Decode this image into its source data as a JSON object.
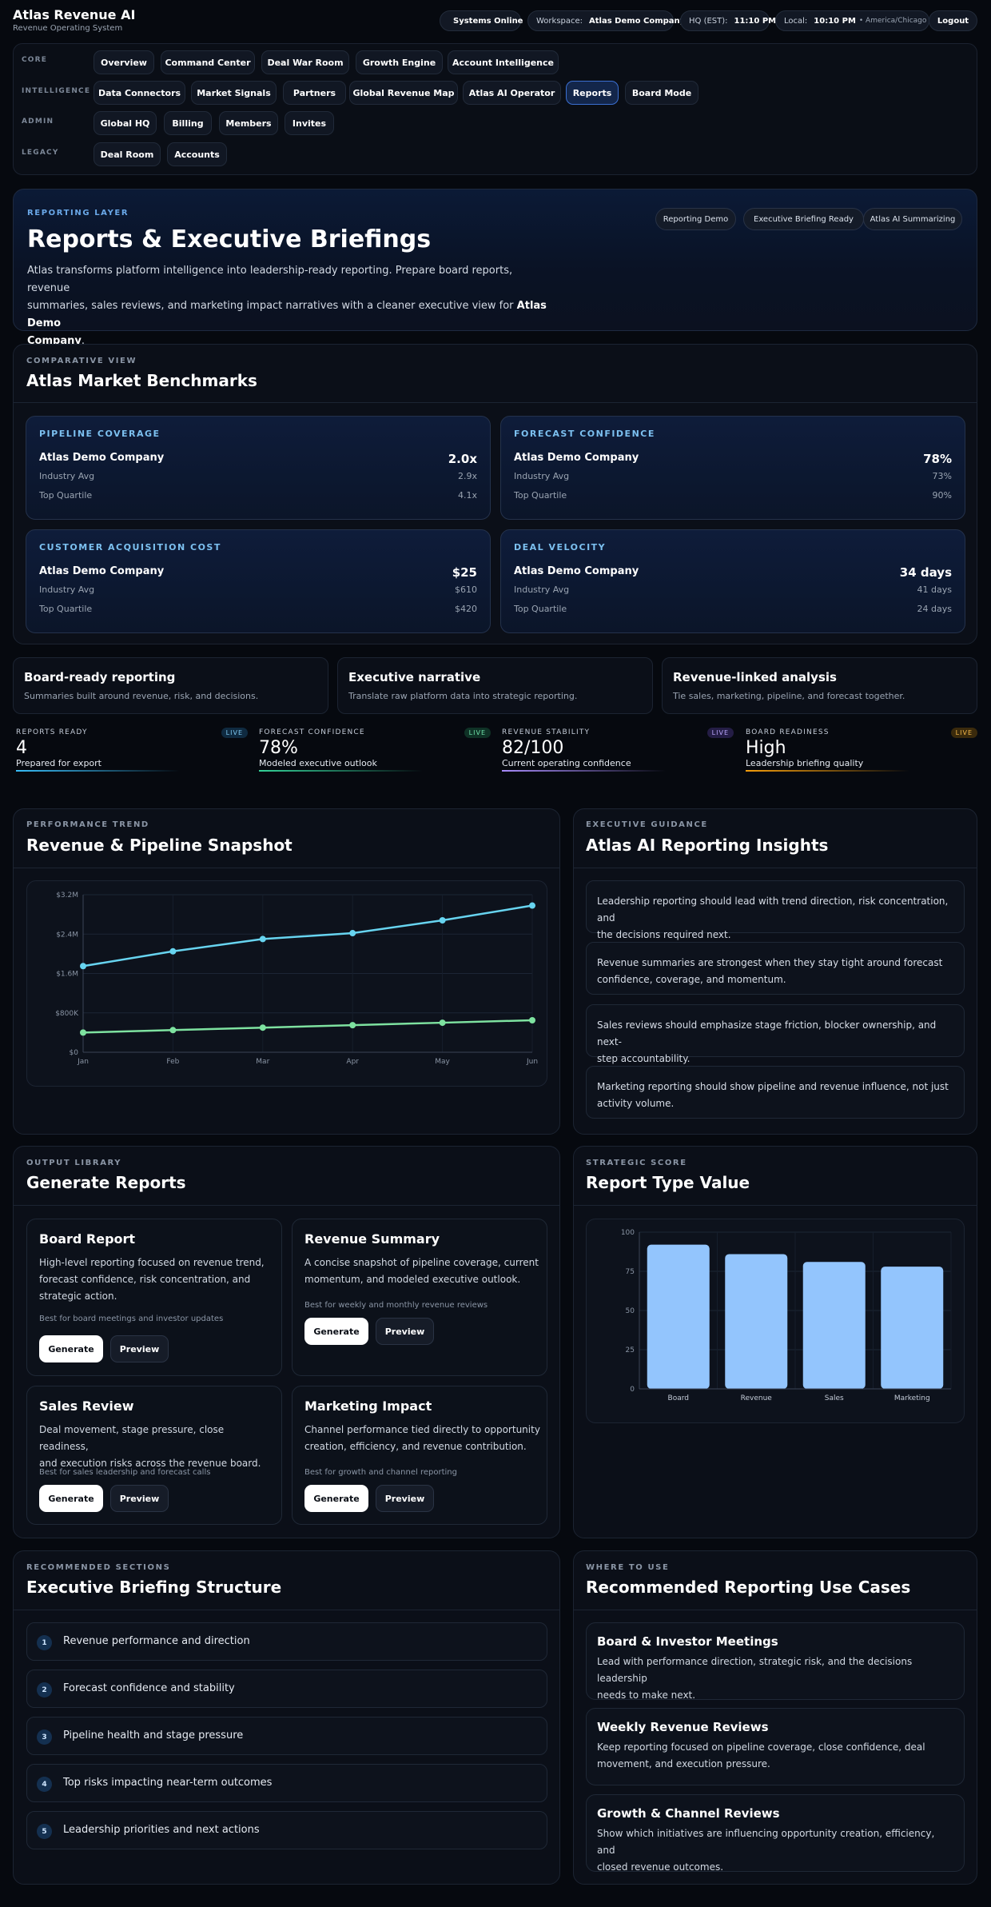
{
  "app": {
    "title": "Atlas Revenue AI",
    "subtitle": "Revenue Operating System"
  },
  "header": {
    "status": "Systems Online",
    "workspace_label": "Workspace:",
    "workspace_value": "Atlas Demo Company",
    "hq_label": "HQ (EST):",
    "hq_value": "11:10 PM",
    "local_label": "Local:",
    "local_value": "10:10 PM",
    "local_tz": "• America/Chicago",
    "logout": "Logout"
  },
  "nav": {
    "core_label": "CORE",
    "core": [
      "Overview",
      "Command Center",
      "Deal War Room",
      "Growth Engine",
      "Account Intelligence"
    ],
    "intel_label": "INTELLIGENCE",
    "intel": [
      "Data Connectors",
      "Market Signals",
      "Partners",
      "Global Revenue Map",
      "Atlas AI Operator",
      "Reports",
      "Board Mode"
    ],
    "admin_label": "ADMIN",
    "admin": [
      "Global HQ",
      "Billing",
      "Members",
      "Invites"
    ],
    "legacy_label": "LEGACY",
    "legacy": [
      "Deal Room",
      "Accounts"
    ],
    "active": "Reports"
  },
  "hero": {
    "eyebrow": "REPORTING LAYER",
    "title": "Reports & Executive Briefings",
    "desc_line1": "Atlas transforms platform intelligence into leadership-ready reporting. Prepare board reports, revenue",
    "desc_line2": "summaries, sales reviews, and marketing impact narratives with a cleaner executive view for",
    "desc_company": "Atlas Demo",
    "desc_company2": "Company",
    "tags": [
      "Reporting Demo",
      "Executive Briefing Ready",
      "Atlas AI Summarizing"
    ]
  },
  "benchmarks": {
    "eyebrow": "COMPARATIVE VIEW",
    "title": "Atlas Market Benchmarks",
    "cards": [
      {
        "title": "PIPELINE COVERAGE",
        "rows": [
          [
            "Atlas Demo Company",
            "2.0x"
          ],
          [
            "Industry Avg",
            "2.9x"
          ],
          [
            "Top Quartile",
            "4.1x"
          ]
        ]
      },
      {
        "title": "FORECAST CONFIDENCE",
        "rows": [
          [
            "Atlas Demo Company",
            "78%"
          ],
          [
            "Industry Avg",
            "73%"
          ],
          [
            "Top Quartile",
            "90%"
          ]
        ]
      },
      {
        "title": "CUSTOMER ACQUISITION COST",
        "rows": [
          [
            "Atlas Demo Company",
            "$25"
          ],
          [
            "Industry Avg",
            "$610"
          ],
          [
            "Top Quartile",
            "$420"
          ]
        ]
      },
      {
        "title": "DEAL VELOCITY",
        "rows": [
          [
            "Atlas Demo Company",
            "34 days"
          ],
          [
            "Industry Avg",
            "41 days"
          ],
          [
            "Top Quartile",
            "24 days"
          ]
        ]
      }
    ]
  },
  "features": [
    {
      "title": "Board-ready reporting",
      "desc": "Summaries built around revenue, risk, and decisions."
    },
    {
      "title": "Executive narrative",
      "desc": "Translate raw platform data into strategic reporting."
    },
    {
      "title": "Revenue-linked analysis",
      "desc": "Tie sales, marketing, pipeline, and forecast together."
    }
  ],
  "kpis": [
    {
      "label": "REPORTS READY",
      "value": "4",
      "sub": "Prepared for export",
      "live": "LIVE",
      "color": "#38bdf8"
    },
    {
      "label": "FORECAST CONFIDENCE",
      "value": "78%",
      "sub": "Modeled executive outlook",
      "live": "LIVE",
      "color": "#34d399"
    },
    {
      "label": "REVENUE STABILITY",
      "value": "82/100",
      "sub": "Current operating confidence",
      "live": "LIVE",
      "color": "#a78bfa"
    },
    {
      "label": "BOARD READINESS",
      "value": "High",
      "sub": "Leadership briefing quality",
      "live": "LIVE",
      "color": "#f59e0b"
    }
  ],
  "trend": {
    "eyebrow": "PERFORMANCE TREND",
    "title": "Revenue & Pipeline Snapshot"
  },
  "guidance": {
    "eyebrow": "EXECUTIVE GUIDANCE",
    "title": "Atlas AI Reporting Insights",
    "items": [
      [
        "Leadership reporting should lead with trend direction, risk concentration, and",
        "the decisions required next."
      ],
      [
        "Revenue summaries are strongest when they stay tight around forecast",
        "confidence, coverage, and momentum."
      ],
      [
        "Sales reviews should emphasize stage friction, blocker ownership, and next-",
        "step accountability."
      ],
      [
        "Marketing reporting should show pipeline and revenue influence, not just",
        "activity volume."
      ]
    ]
  },
  "library": {
    "eyebrow": "OUTPUT LIBRARY",
    "title": "Generate Reports",
    "generate": "Generate",
    "preview": "Preview",
    "reports": [
      {
        "title": "Board Report",
        "lines": [
          "High-level reporting focused on revenue trend,",
          "forecast confidence, risk concentration, and",
          "strategic action."
        ],
        "note": "Best for board meetings and investor updates"
      },
      {
        "title": "Revenue Summary",
        "lines": [
          "A concise snapshot of pipeline coverage, current",
          "momentum, and modeled executive outlook."
        ],
        "note": "Best for weekly and monthly revenue reviews"
      },
      {
        "title": "Sales Review",
        "lines": [
          "Deal movement, stage pressure, close readiness,",
          "and execution risks across the revenue board."
        ],
        "note": "Best for sales leadership and forecast calls"
      },
      {
        "title": "Marketing Impact",
        "lines": [
          "Channel performance tied directly to opportunity",
          "creation, efficiency, and revenue contribution."
        ],
        "note": "Best for growth and channel reporting"
      }
    ]
  },
  "score": {
    "eyebrow": "STRATEGIC SCORE",
    "title": "Report Type Value"
  },
  "structure": {
    "eyebrow": "RECOMMENDED SECTIONS",
    "title": "Executive Briefing Structure",
    "items": [
      "Revenue performance and direction",
      "Forecast confidence and stability",
      "Pipeline health and stage pressure",
      "Top risks impacting near-term outcomes",
      "Leadership priorities and next actions"
    ]
  },
  "usecases": {
    "eyebrow": "WHERE TO USE",
    "title": "Recommended Reporting Use Cases",
    "items": [
      {
        "title": "Board & Investor Meetings",
        "lines": [
          "Lead with performance direction, strategic risk, and the decisions leadership",
          "needs to make next."
        ]
      },
      {
        "title": "Weekly Revenue Reviews",
        "lines": [
          "Keep reporting focused on pipeline coverage, close confidence, deal",
          "movement, and execution pressure."
        ]
      },
      {
        "title": "Growth & Channel Reviews",
        "lines": [
          "Show which initiatives are influencing opportunity creation, efficiency, and",
          "closed revenue outcomes."
        ]
      }
    ]
  },
  "chart_data": [
    {
      "type": "line",
      "categories": [
        "Jan",
        "Feb",
        "Mar",
        "Apr",
        "May",
        "Jun"
      ],
      "series": [
        {
          "values": [
            1750000,
            2050000,
            2300000,
            2420000,
            2680000,
            2980000
          ],
          "color": "#67d4f0"
        },
        {
          "values": [
            400000,
            450000,
            500000,
            550000,
            600000,
            650000
          ],
          "color": "#7ee2a0"
        }
      ],
      "yticks": [
        "$0",
        "$800K",
        "$1.6M",
        "$2.4M",
        "$3.2M"
      ],
      "ylim": [
        0,
        3200000
      ],
      "grid": true
    },
    {
      "type": "bar",
      "categories": [
        "Board",
        "Revenue",
        "Sales",
        "Marketing"
      ],
      "values": [
        92,
        86,
        81,
        78
      ],
      "yticks": [
        "0",
        "25",
        "50",
        "75",
        "100"
      ],
      "ylim": [
        0,
        100
      ],
      "color": "#93c5fd",
      "grid": true
    }
  ]
}
